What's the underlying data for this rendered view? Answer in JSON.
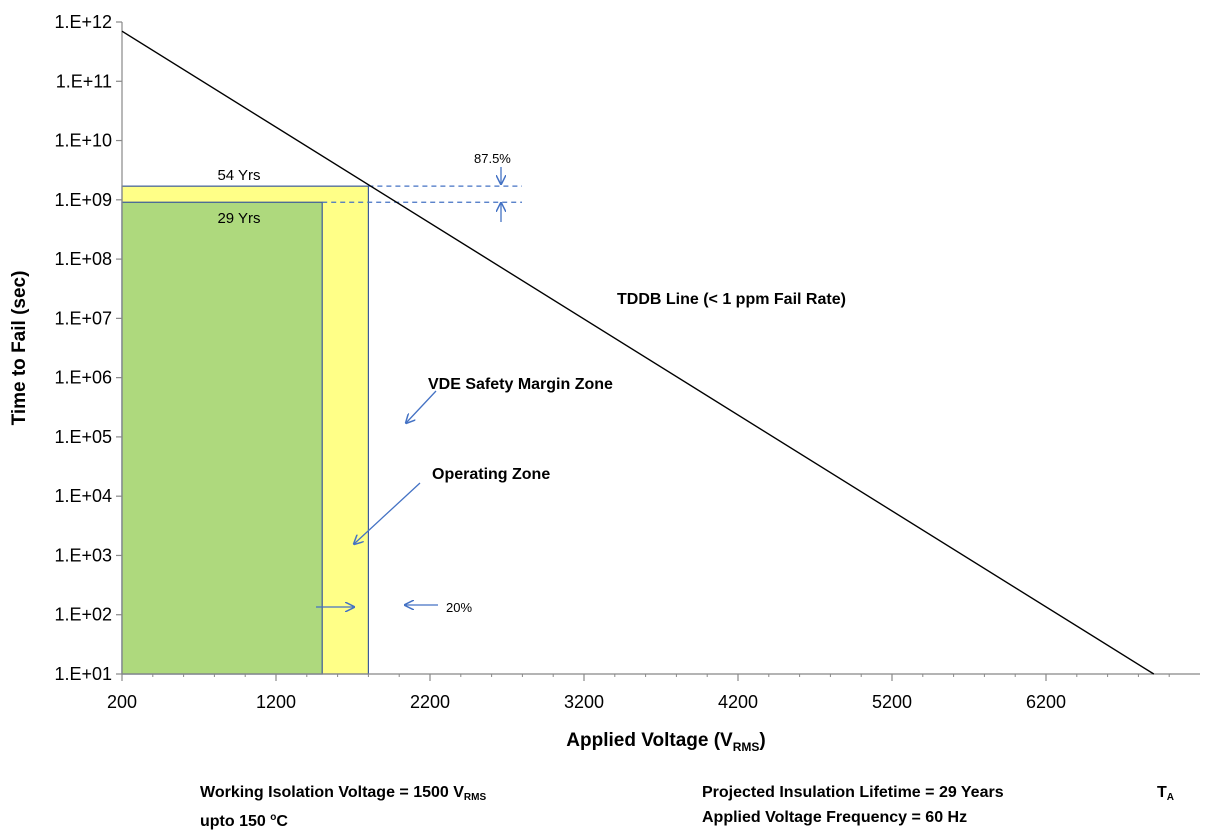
{
  "chart_data": {
    "type": "line",
    "xlabel": "Applied Voltage (V",
    "xlabel_sub": "RMS",
    "xlabel_end": ")",
    "ylabel": "Time to Fail (sec)",
    "x_ticks": [
      "200",
      "1200",
      "2200",
      "3200",
      "4200",
      "5200",
      "6200"
    ],
    "x_tick_values": [
      200,
      1200,
      2200,
      3200,
      4200,
      5200,
      6200
    ],
    "y_ticks": [
      "1.E+01",
      "1.E+02",
      "1.E+03",
      "1.E+04",
      "1.E+05",
      "1.E+06",
      "1.E+07",
      "1.E+08",
      "1.E+09",
      "1.E+10",
      "1.E+11",
      "1.E+12"
    ],
    "y_tick_exponents": [
      1,
      2,
      3,
      4,
      5,
      6,
      7,
      8,
      9,
      10,
      11,
      12
    ],
    "xlim": [
      200,
      7200
    ],
    "ylim": [
      10,
      1000000000000.0
    ],
    "y_scale": "log",
    "grid": false,
    "series": [
      {
        "name": "TDDB Line (< 1 ppm Fail Rate)",
        "color": "#000000",
        "x": [
          200,
          6900
        ],
        "y": [
          700000000000.0,
          10
        ]
      }
    ],
    "zones": [
      {
        "name": "Operating  Zone",
        "x_start": 200,
        "x_end": 1500,
        "y_top": 910000000.0,
        "label": "29 Yrs",
        "color": "#aed97d"
      },
      {
        "name": "VDE Safety Margin Zone",
        "x_start": 1500,
        "x_end": 1800,
        "y_top": 1700000000.0,
        "label": "54 Yrs",
        "color": "#ffff87"
      }
    ],
    "annotations": {
      "tddb_label": "TDDB Line (< 1 ppm Fail Rate)",
      "vde_label": "VDE Safety Margin Zone",
      "operating_label": "Operating  Zone",
      "lifetime_margin_pct": "87.5%",
      "voltage_margin_pct": "20%",
      "label_54": "54 Yrs",
      "label_29": "29 Yrs"
    },
    "colors": {
      "operating_zone": "#aed97d",
      "vde_zone": "#ffff87",
      "zone_border": "#3c5a9a",
      "arrow": "#4472c4",
      "line": "#000000"
    }
  },
  "footer": {
    "working_voltage": "Working Isolation Voltage = 1500 V",
    "working_voltage_sub": "RMS",
    "temperature_prefix": "upto 150 ",
    "temperature_sup": "o",
    "temperature_suffix": "C",
    "lifetime": "Projected Insulation Lifetime =  29 Years",
    "frequency": "Applied Voltage Frequency = 60 Hz",
    "ta_label": "T",
    "ta_sub": "A"
  }
}
